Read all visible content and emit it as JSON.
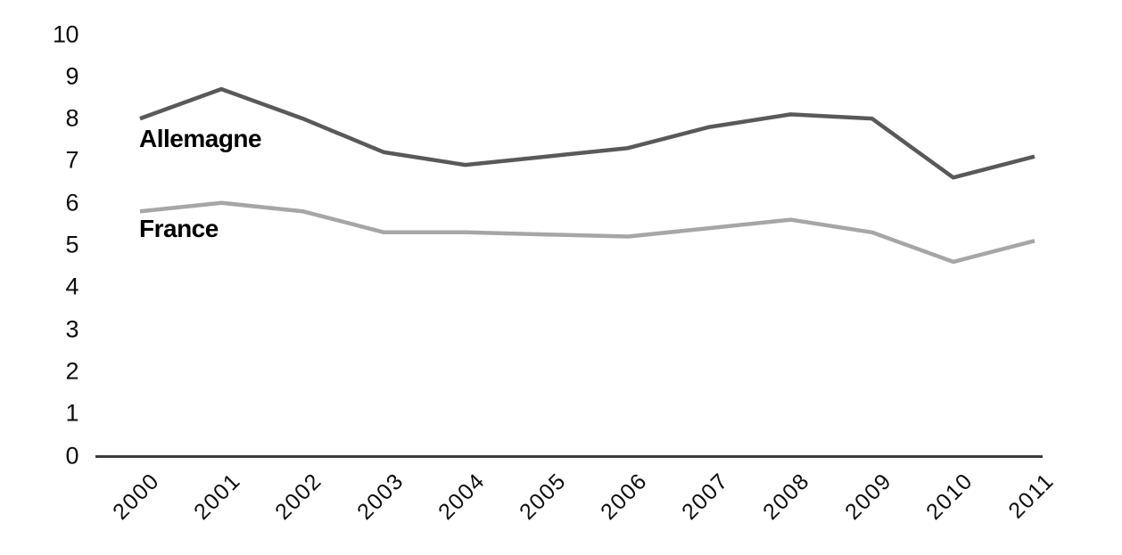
{
  "chart_data": {
    "type": "line",
    "title": "",
    "xlabel": "",
    "ylabel": "",
    "x": [
      "2000",
      "2001",
      "2002",
      "2003",
      "2004",
      "2005",
      "2006",
      "2007",
      "2008",
      "2009",
      "2010",
      "2011"
    ],
    "y_ticks": [
      0,
      1,
      2,
      3,
      4,
      5,
      6,
      7,
      8,
      9,
      10
    ],
    "ylim": [
      0,
      10
    ],
    "grid": false,
    "legend_position": "inline-next-to-lines",
    "series": [
      {
        "name": "Allemagne",
        "color": "#595959",
        "values": [
          8.0,
          8.7,
          8.0,
          7.2,
          6.9,
          7.1,
          7.3,
          7.8,
          8.1,
          8.0,
          6.6,
          7.1
        ]
      },
      {
        "name": "France",
        "color": "#a6a6a6",
        "values": [
          5.8,
          6.0,
          5.8,
          5.3,
          5.3,
          5.25,
          5.2,
          5.4,
          5.6,
          5.3,
          4.6,
          5.1
        ]
      }
    ],
    "axis_color": "#3b3b3b",
    "text_color": "#0d0d0d"
  }
}
